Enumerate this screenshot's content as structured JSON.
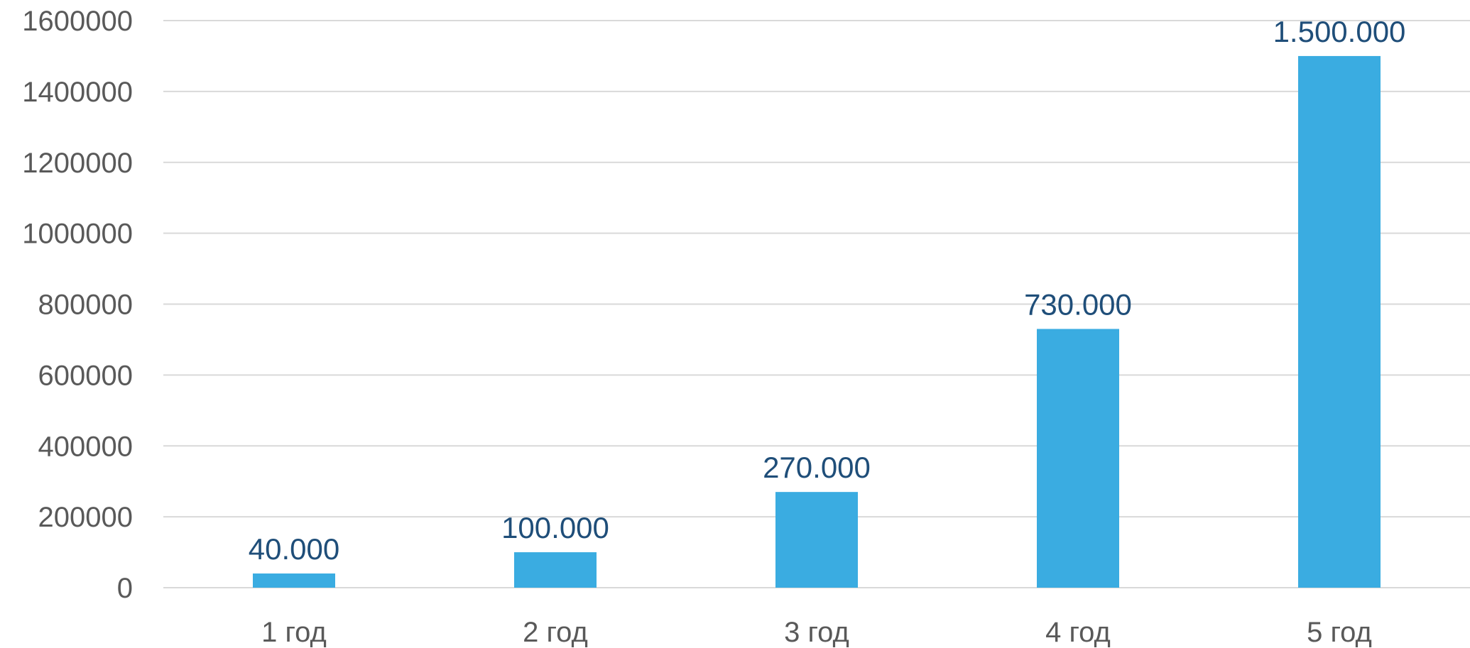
{
  "chart_data": {
    "type": "bar",
    "categories": [
      "1 год",
      "2 год",
      "3 год",
      "4 год",
      "5 год"
    ],
    "values": [
      40000,
      100000,
      270000,
      730000,
      1500000
    ],
    "data_labels": [
      "40.000",
      "100.000",
      "270.000",
      "730.000",
      "1.500.000"
    ],
    "yticks": [
      "0",
      "200000",
      "400000",
      "600000",
      "800000",
      "1000000",
      "1200000",
      "1400000",
      "1600000"
    ],
    "ylim": [
      0,
      1600000
    ],
    "grid": true,
    "legend": false,
    "bar_color": "#3aace1",
    "label_color": "#1f4e79",
    "tick_color": "#595959",
    "grid_color": "#d9d9d9"
  }
}
